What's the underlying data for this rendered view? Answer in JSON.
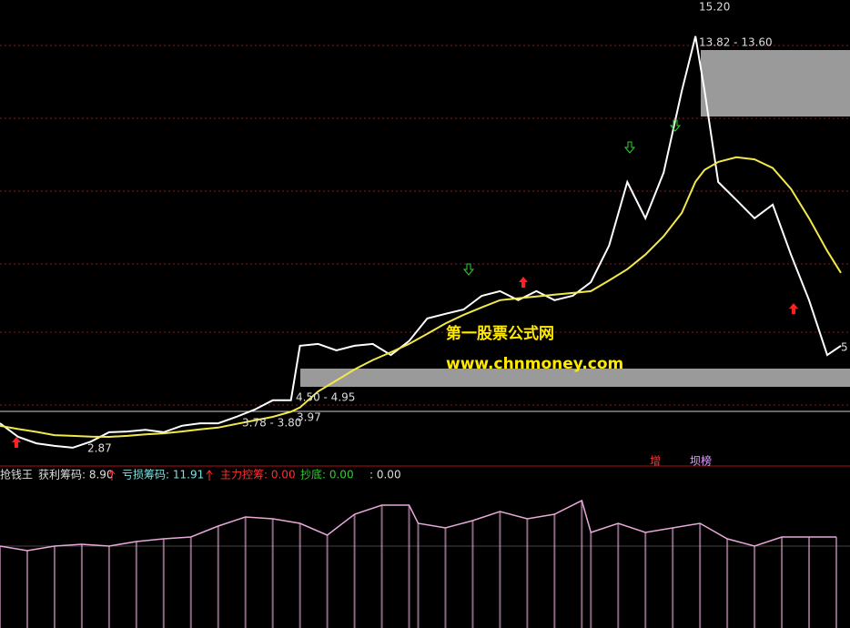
{
  "chart_data": [
    {
      "type": "line",
      "x": [
        0,
        4,
        8,
        12,
        16,
        20,
        24,
        28,
        32,
        36,
        40,
        44,
        48,
        52,
        56,
        60,
        64,
        66,
        70,
        74,
        78,
        82,
        86,
        90,
        94,
        98,
        102,
        106,
        110,
        114,
        118,
        122,
        126,
        130,
        134,
        138,
        142,
        146,
        150,
        153,
        155,
        158,
        162,
        166,
        170,
        174,
        178,
        182,
        185
      ],
      "xlim": [
        0,
        187
      ],
      "ylim": [
        2.4,
        15.38
      ],
      "series": [
        {
          "name": "price",
          "color": "#ffffff",
          "values": [
            3.59,
            3.21,
            3.03,
            2.96,
            2.91,
            3.08,
            3.34,
            3.36,
            3.41,
            3.34,
            3.52,
            3.59,
            3.59,
            3.77,
            3.97,
            4.23,
            4.23,
            5.75,
            5.8,
            5.62,
            5.75,
            5.8,
            5.49,
            5.88,
            6.51,
            6.64,
            6.76,
            7.14,
            7.27,
            7.02,
            7.27,
            7.02,
            7.14,
            7.52,
            8.54,
            10.31,
            9.3,
            10.57,
            12.85,
            14.37,
            12.85,
            10.31,
            9.81,
            9.3,
            9.68,
            8.29,
            7.02,
            5.49,
            5.75
          ]
        },
        {
          "name": "ma",
          "color": "#f2e84a",
          "values": [
            3.52,
            3.43,
            3.35,
            3.26,
            3.24,
            3.22,
            3.21,
            3.24,
            3.28,
            3.31,
            3.36,
            3.42,
            3.47,
            3.57,
            3.67,
            3.77,
            3.91,
            4.03,
            4.48,
            4.78,
            5.09,
            5.35,
            5.57,
            5.8,
            6.08,
            6.37,
            6.61,
            6.82,
            7.02,
            7.07,
            7.12,
            7.17,
            7.22,
            7.27,
            7.57,
            7.88,
            8.29,
            8.8,
            9.45,
            10.32,
            10.65,
            10.87,
            11.0,
            10.94,
            10.7,
            10.12,
            9.3,
            8.39,
            7.78
          ]
        }
      ],
      "annotations": [
        "15.20",
        "13.82 - 13.60",
        "第一股票公式网",
        "www.chnmoney.com",
        "4.50 - 4.95",
        "3.78 - 3.80",
        "3.97",
        "2.87",
        "5",
        "增",
        "坝榜"
      ]
    },
    {
      "type": "line",
      "labels": [
        "抢钱王",
        "获利筹码: 8.90",
        "亏损筹码: 11.91",
        "主力控筹: 0.00",
        "抄底: 0.00",
        ": 0.00"
      ],
      "x": [
        0,
        6,
        12,
        18,
        24,
        30,
        36,
        42,
        48,
        54,
        60,
        66,
        72,
        78,
        84,
        90,
        92,
        98,
        104,
        110,
        116,
        122,
        128,
        130,
        136,
        142,
        148,
        154,
        160,
        166,
        172,
        178,
        184
      ],
      "xlim": [
        0,
        187
      ],
      "ylim": [
        0,
        100
      ],
      "series": [
        {
          "name": "chips",
          "color": "#e8a8d8",
          "values": [
            60,
            56.7,
            60,
            61.3,
            60,
            63.3,
            65.3,
            66.7,
            74.7,
            81.3,
            80,
            76.7,
            68,
            83.3,
            90,
            90,
            76.7,
            73.3,
            78.7,
            85.3,
            80,
            83.3,
            93.3,
            70,
            76.7,
            70,
            73.3,
            76.7,
            65.3,
            60,
            66.7,
            66.7,
            66.7
          ]
        }
      ]
    }
  ]
}
